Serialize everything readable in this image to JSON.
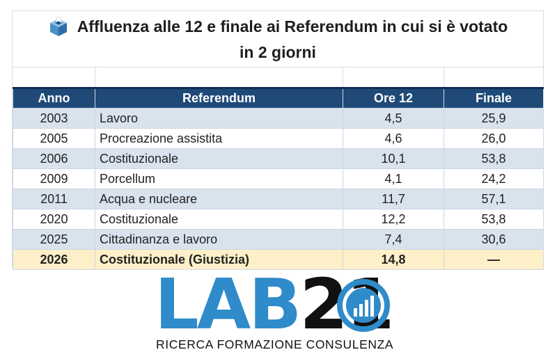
{
  "title": {
    "line1": "Affluenza alle 12 e finale ai Referendum in cui si è votato",
    "line2": "in 2 giorni"
  },
  "table": {
    "headers": [
      "Anno",
      "Referendum",
      "Ore 12",
      "Finale"
    ],
    "rows": [
      {
        "anno": "2003",
        "referendum": "Lavoro",
        "ore12": "4,5",
        "finale": "25,9"
      },
      {
        "anno": "2005",
        "referendum": "Procreazione assistita",
        "ore12": "4,6",
        "finale": "26,0"
      },
      {
        "anno": "2006",
        "referendum": "Costituzionale",
        "ore12": "10,1",
        "finale": "53,8"
      },
      {
        "anno": "2009",
        "referendum": "Porcellum",
        "ore12": "4,1",
        "finale": "24,2"
      },
      {
        "anno": "2011",
        "referendum": "Acqua e nucleare",
        "ore12": "11,7",
        "finale": "57,1"
      },
      {
        "anno": "2020",
        "referendum": "Costituzionale",
        "ore12": "12,2",
        "finale": "53,8"
      },
      {
        "anno": "2025",
        "referendum": "Cittadinanza e lavoro",
        "ore12": "7,4",
        "finale": "30,6"
      },
      {
        "anno": "2026",
        "referendum": "Costituzionale (Giustizia)",
        "ore12": "14,8",
        "finale": "—"
      }
    ]
  },
  "logo": {
    "lab": "LAB",
    "number": "21",
    "tagline": "RICERCA FORMAZIONE CONSULENZA"
  },
  "colors": {
    "header_bg": "#1f4a78",
    "row_shade": "#d9e3ee",
    "row_highlight": "#fdf0c8",
    "logo_blue": "#2f8bc9"
  },
  "icons": [
    "ballot-box-icon",
    "bar-chart-circle-icon"
  ]
}
